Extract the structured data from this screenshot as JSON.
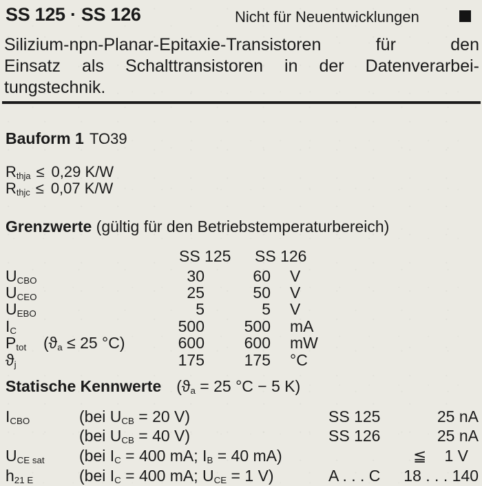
{
  "colors": {
    "paper": "#ebeae3",
    "ink": "#1a1a1a"
  },
  "header": {
    "title": "SS 125 · SS 126",
    "note": "Nicht für Neuentwicklungen"
  },
  "intro": {
    "line1": "Silizium-npn-Planar-Epitaxie-Transistoren für den",
    "line2": "Einsatz als Schalttransistoren in der Datenverarbei-",
    "line3": "tungstechnik."
  },
  "bauform": {
    "label": "Bauform 1",
    "package": "TO39"
  },
  "thermal": {
    "rows": [
      {
        "sym": "R",
        "sub": "thja",
        "rel": "≤",
        "value": "0,29 K/W"
      },
      {
        "sym": "R",
        "sub": "thjc",
        "rel": "≤",
        "value": "0,07 K/W"
      }
    ]
  },
  "grenzwerte": {
    "heading": "Grenzwerte",
    "note": "(gültig für den Betriebstemperaturbereich)",
    "columns": {
      "c1": "SS 125",
      "c2": "SS 126"
    },
    "rows": [
      {
        "sym": "U",
        "sub": "CBO",
        "v1": "30",
        "v2": "60",
        "unit": "V"
      },
      {
        "sym": "U",
        "sub": "CEO",
        "v1": "25",
        "v2": "50",
        "unit": "V"
      },
      {
        "sym": "U",
        "sub": "EBO",
        "v1": "5",
        "v2": "5",
        "unit": "V"
      },
      {
        "sym": "I",
        "sub": "C",
        "v1": "500",
        "v2": "500",
        "unit": "mA"
      },
      {
        "sym": "P",
        "sub": "tot",
        "cond_pre": "(ϑ",
        "cond_sub": "a",
        "cond_post": " ≤ 25 °C)",
        "v1": "600",
        "v2": "600",
        "unit": "mW"
      },
      {
        "sym": "ϑ",
        "sub": "j",
        "v1": "175",
        "v2": "175",
        "unit": "°C"
      }
    ]
  },
  "statische": {
    "heading": "Statische Kennwerte",
    "note_pre": "(ϑ",
    "note_sub": "a",
    "note_post": " = 25 °C − 5 K)",
    "rows": [
      {
        "sym": "I",
        "sub": "CBO",
        "c1": "(bei U",
        "cs1": "CB",
        "c2": " = 20 V)",
        "type": "SS 125",
        "val": "25 nA"
      },
      {
        "c1": "(bei U",
        "cs1": "CB",
        "c2": " = 40 V)",
        "type": "SS 126",
        "val": "25 nA"
      },
      {
        "sym": "U",
        "sub": "CE sat",
        "c1": "(bei I",
        "cs1": "C",
        "c2": " = 400 mA; I",
        "cs2": "B",
        "c3": " = 40 mA)",
        "rel": "≦",
        "val": "1 V"
      },
      {
        "sym": "h",
        "sub": "21 E",
        "c1": "(bei I",
        "cs1": "C",
        "c2": " = 400 mA; U",
        "cs2": "CE",
        "c3": " = 1 V)",
        "type": "A . . . C",
        "val": "18 . . . 140"
      }
    ]
  }
}
